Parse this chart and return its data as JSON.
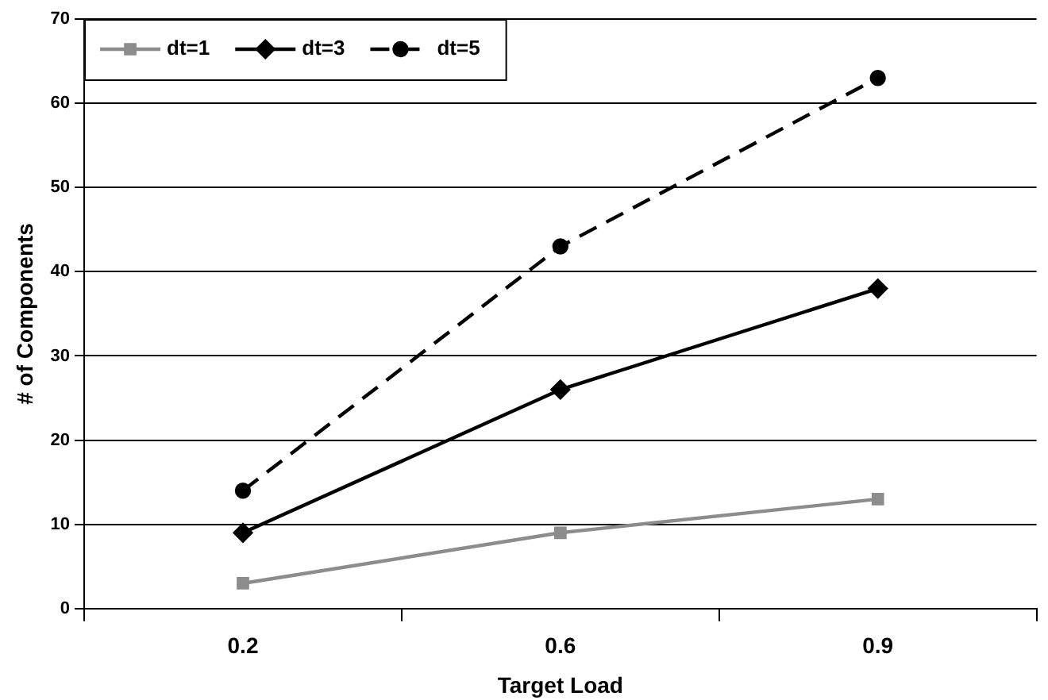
{
  "chart_data": {
    "type": "line",
    "xlabel": "Target Load",
    "ylabel": "# of Components",
    "categories": [
      "0.2",
      "0.6",
      "0.9"
    ],
    "series": [
      {
        "name": "dt=1",
        "color": "#8c8c8c",
        "values": [
          3,
          9,
          13
        ],
        "marker": "square",
        "line_style": "solid"
      },
      {
        "name": "dt=3",
        "color": "#000000",
        "values": [
          9,
          26,
          38
        ],
        "marker": "diamond",
        "line_style": "solid"
      },
      {
        "name": "dt=5",
        "color": "#000000",
        "values": [
          14,
          43,
          63
        ],
        "marker": "circle",
        "line_style": "dashed"
      }
    ],
    "ylim": [
      0,
      70
    ],
    "yticks": [
      0,
      10,
      20,
      30,
      40,
      50,
      60,
      70
    ],
    "grid": "y",
    "legend": "top left"
  }
}
